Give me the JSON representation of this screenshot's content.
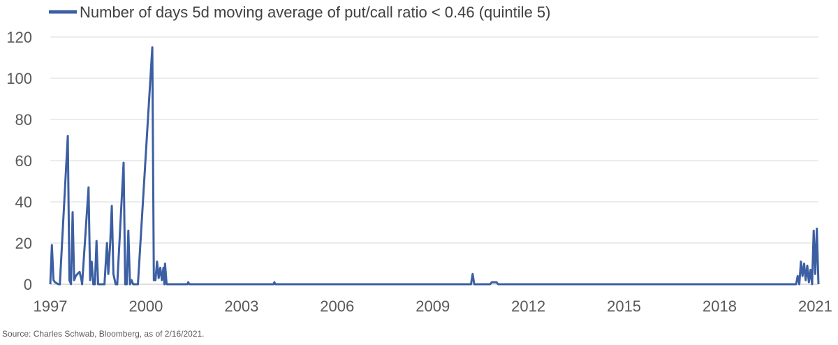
{
  "chart_data": {
    "type": "line",
    "title": "",
    "xlabel": "",
    "ylabel": "",
    "legend_position": "top-left",
    "grid": "horizontal",
    "ylim": [
      0,
      120
    ],
    "xlim": [
      1997.0,
      2021.1
    ],
    "y_ticks": [
      0,
      20,
      40,
      60,
      80,
      100,
      120
    ],
    "x_ticks": [
      1997,
      2000,
      2003,
      2006,
      2009,
      2012,
      2015,
      2018,
      2021
    ],
    "series": [
      {
        "name": "Number of days 5d moving average of put/call ratio < 0.46 (quintile 5)",
        "color": "#3c5fa3",
        "points": [
          [
            1997.0,
            0
          ],
          [
            1997.05,
            19
          ],
          [
            1997.1,
            2
          ],
          [
            1997.15,
            1
          ],
          [
            1997.25,
            0
          ],
          [
            1997.3,
            0
          ],
          [
            1997.55,
            72
          ],
          [
            1997.6,
            2
          ],
          [
            1997.65,
            0
          ],
          [
            1997.7,
            35
          ],
          [
            1997.75,
            2
          ],
          [
            1997.8,
            4
          ],
          [
            1997.85,
            5
          ],
          [
            1997.92,
            6
          ],
          [
            1997.98,
            2
          ],
          [
            1998.0,
            0
          ],
          [
            1998.2,
            47
          ],
          [
            1998.25,
            2
          ],
          [
            1998.3,
            11
          ],
          [
            1998.35,
            0
          ],
          [
            1998.4,
            0
          ],
          [
            1998.45,
            21
          ],
          [
            1998.5,
            0
          ],
          [
            1998.7,
            0
          ],
          [
            1998.78,
            20
          ],
          [
            1998.82,
            5
          ],
          [
            1998.88,
            20
          ],
          [
            1998.93,
            38
          ],
          [
            1998.98,
            5
          ],
          [
            1999.05,
            0
          ],
          [
            1999.1,
            0
          ],
          [
            1999.3,
            59
          ],
          [
            1999.35,
            0
          ],
          [
            1999.4,
            0
          ],
          [
            1999.45,
            26
          ],
          [
            1999.5,
            0
          ],
          [
            1999.55,
            2
          ],
          [
            1999.6,
            0
          ],
          [
            1999.7,
            0
          ],
          [
            1999.75,
            0
          ],
          [
            2000.2,
            115
          ],
          [
            2000.25,
            2
          ],
          [
            2000.3,
            2
          ],
          [
            2000.35,
            11
          ],
          [
            2000.4,
            3
          ],
          [
            2000.45,
            8
          ],
          [
            2000.5,
            2
          ],
          [
            2000.55,
            8
          ],
          [
            2000.58,
            0
          ],
          [
            2000.6,
            10
          ],
          [
            2000.65,
            0
          ],
          [
            2001.3,
            0
          ],
          [
            2001.33,
            1
          ],
          [
            2001.36,
            0
          ],
          [
            2004.0,
            0
          ],
          [
            2004.03,
            1
          ],
          [
            2004.06,
            0
          ],
          [
            2010.2,
            0
          ],
          [
            2010.25,
            5
          ],
          [
            2010.3,
            0
          ],
          [
            2010.8,
            0
          ],
          [
            2010.85,
            1
          ],
          [
            2011.0,
            1
          ],
          [
            2011.05,
            0
          ],
          [
            2020.4,
            0
          ],
          [
            2020.45,
            4
          ],
          [
            2020.5,
            0
          ],
          [
            2020.55,
            11
          ],
          [
            2020.6,
            4
          ],
          [
            2020.65,
            10
          ],
          [
            2020.7,
            2
          ],
          [
            2020.75,
            9
          ],
          [
            2020.8,
            1
          ],
          [
            2020.85,
            7
          ],
          [
            2020.9,
            0
          ],
          [
            2020.95,
            26
          ],
          [
            2021.0,
            5
          ],
          [
            2021.05,
            27
          ],
          [
            2021.1,
            0
          ]
        ]
      }
    ]
  },
  "source_note": "Source: Charles Schwab, Bloomberg, as of 2/16/2021."
}
